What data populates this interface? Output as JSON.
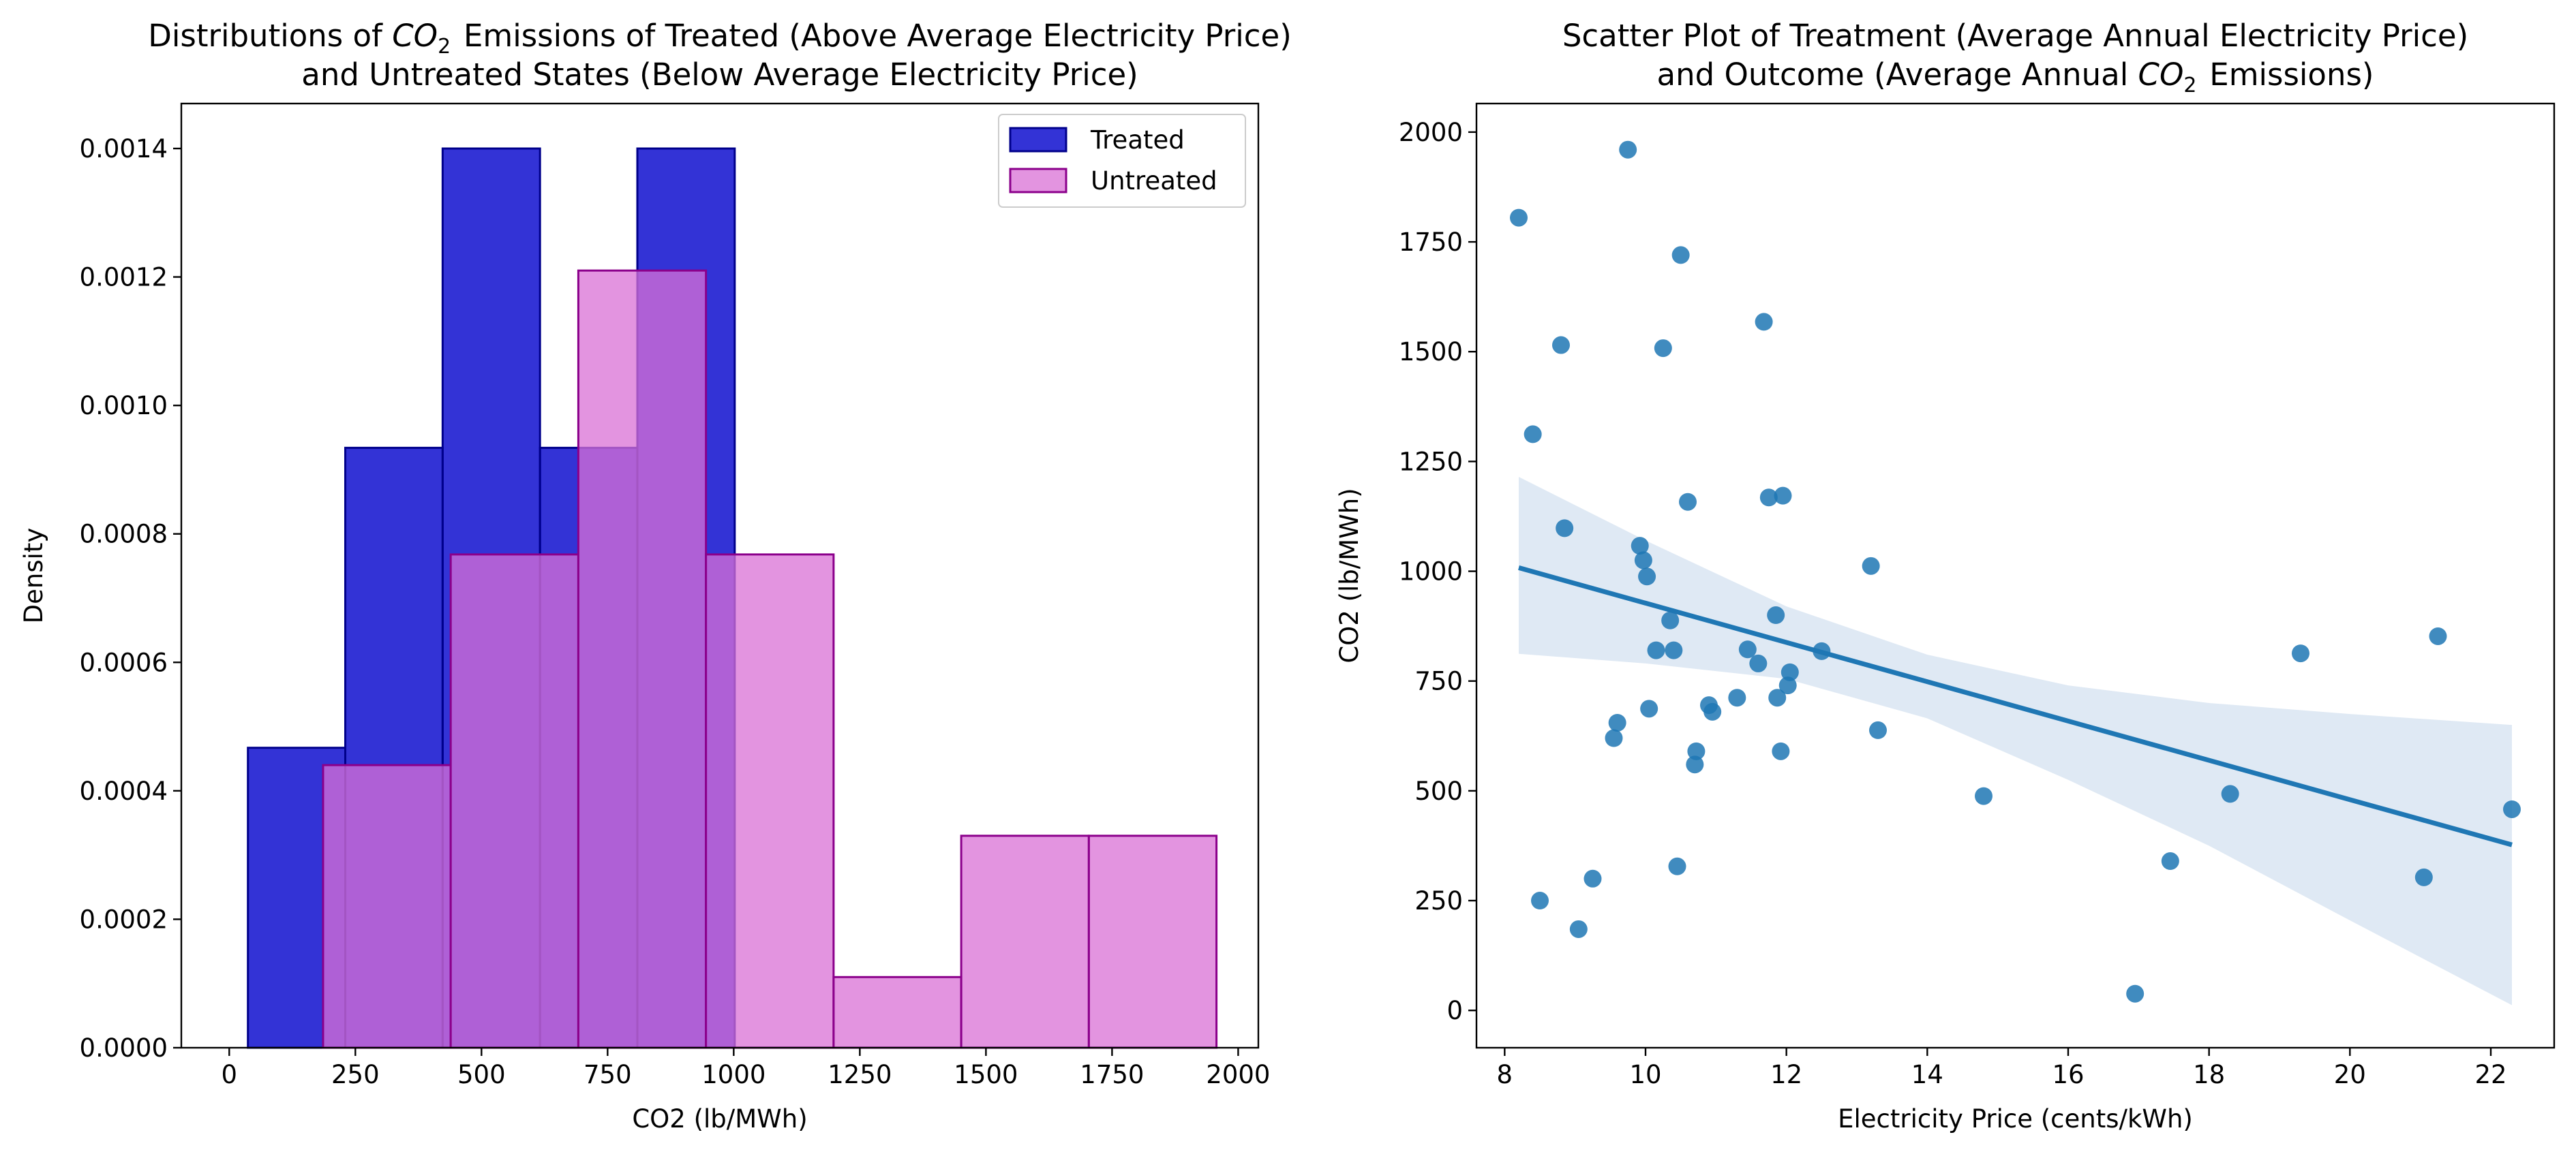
{
  "chart_data": [
    {
      "type": "histogram",
      "title_lines": [
        [
          "Distributions of ",
          {
            "sub_text": "CO",
            "sub": "2"
          },
          " Emissions of Treated (Above Average Electricity Price)"
        ],
        [
          "and Untreated States (Below Average Electricity Price)"
        ]
      ],
      "xlabel": "CO2 (lb/MWh)",
      "ylabel": "Density",
      "xlim": [
        -95,
        2040
      ],
      "ylim": [
        0,
        0.00147
      ],
      "xticks": [
        0,
        250,
        500,
        750,
        1000,
        1250,
        1500,
        1750,
        2000
      ],
      "yticks": [
        0.0,
        0.0002,
        0.0004,
        0.0006,
        0.0008,
        0.001,
        0.0012,
        0.0014
      ],
      "ytick_labels": [
        "0.0000",
        "0.0002",
        "0.0004",
        "0.0006",
        "0.0008",
        "0.0010",
        "0.0012",
        "0.0014"
      ],
      "legend_position": "upper right",
      "series": [
        {
          "name": "Treated",
          "fill": "#0000cc",
          "fill_opacity": 0.8,
          "edge": "#00008b",
          "bins": [
            {
              "x0": 37,
              "x1": 230,
              "density": 0.000467
            },
            {
              "x0": 230,
              "x1": 423,
              "density": 0.000934
            },
            {
              "x0": 423,
              "x1": 616,
              "density": 0.0014
            },
            {
              "x0": 616,
              "x1": 809,
              "density": 0.000934
            },
            {
              "x0": 809,
              "x1": 1002,
              "density": 0.0014
            }
          ]
        },
        {
          "name": "Untreated",
          "fill": "#da70d6",
          "fill_opacity": 0.75,
          "edge": "#8b008b",
          "bins": [
            {
              "x0": 186,
              "x1": 439,
              "density": 0.00044
            },
            {
              "x0": 439,
              "x1": 692,
              "density": 0.000768
            },
            {
              "x0": 692,
              "x1": 945,
              "density": 0.00121
            },
            {
              "x0": 945,
              "x1": 1198,
              "density": 0.000768
            },
            {
              "x0": 1198,
              "x1": 1451,
              "density": 0.00011
            },
            {
              "x0": 1451,
              "x1": 1704,
              "density": 0.00033
            },
            {
              "x0": 1704,
              "x1": 1957,
              "density": 0.00033
            }
          ]
        }
      ]
    },
    {
      "type": "scatter",
      "title_lines": [
        [
          "Scatter Plot of Treatment (Average Annual Electricity Price)"
        ],
        [
          "and Outcome (Average Annual ",
          {
            "sub_text": "CO",
            "sub": "2"
          },
          " Emissions)"
        ]
      ],
      "xlabel": "Electricity Price (cents/kWh)",
      "ylabel": "CO2 (lb/MWh)",
      "xlim": [
        7.6,
        22.9
      ],
      "ylim": [
        -85,
        2065
      ],
      "xticks": [
        8,
        10,
        12,
        14,
        16,
        18,
        20,
        22
      ],
      "yticks": [
        0,
        250,
        500,
        750,
        1000,
        1250,
        1500,
        1750,
        2000
      ],
      "point_color": "#1f77b4",
      "points": [
        [
          8.2,
          1805
        ],
        [
          8.4,
          1312
        ],
        [
          8.5,
          250
        ],
        [
          8.8,
          1515
        ],
        [
          8.85,
          1098
        ],
        [
          9.05,
          185
        ],
        [
          9.25,
          300
        ],
        [
          9.55,
          620
        ],
        [
          9.6,
          655
        ],
        [
          9.75,
          1960
        ],
        [
          9.92,
          1058
        ],
        [
          9.97,
          1025
        ],
        [
          10.02,
          988
        ],
        [
          10.05,
          687
        ],
        [
          10.15,
          820
        ],
        [
          10.25,
          1508
        ],
        [
          10.35,
          888
        ],
        [
          10.4,
          820
        ],
        [
          10.45,
          328
        ],
        [
          10.5,
          1720
        ],
        [
          10.6,
          1158
        ],
        [
          10.7,
          560
        ],
        [
          10.72,
          590
        ],
        [
          10.9,
          695
        ],
        [
          10.95,
          680
        ],
        [
          11.3,
          712
        ],
        [
          11.45,
          822
        ],
        [
          11.6,
          790
        ],
        [
          11.68,
          1568
        ],
        [
          11.75,
          1168
        ],
        [
          11.85,
          900
        ],
        [
          11.87,
          712
        ],
        [
          11.92,
          590
        ],
        [
          11.95,
          1172
        ],
        [
          12.02,
          740
        ],
        [
          12.05,
          770
        ],
        [
          12.5,
          818
        ],
        [
          13.2,
          1012
        ],
        [
          13.3,
          638
        ],
        [
          14.8,
          488
        ],
        [
          16.95,
          38
        ],
        [
          17.45,
          340
        ],
        [
          18.3,
          493
        ],
        [
          19.3,
          813
        ],
        [
          21.05,
          303
        ],
        [
          21.25,
          852
        ],
        [
          22.3,
          458
        ]
      ],
      "regression": {
        "x_range": [
          8.2,
          22.3
        ],
        "y_start": 1008,
        "y_end": 377,
        "color": "#1f77b4",
        "ci_color": "#dfe9f4",
        "ci_band": [
          [
            8.2,
            1215,
            812
          ],
          [
            10,
            1070,
            790
          ],
          [
            12,
            920,
            755
          ],
          [
            14,
            810,
            665
          ],
          [
            16,
            740,
            525
          ],
          [
            18,
            700,
            375
          ],
          [
            20,
            675,
            205
          ],
          [
            22.3,
            650,
            12
          ]
        ]
      }
    }
  ]
}
